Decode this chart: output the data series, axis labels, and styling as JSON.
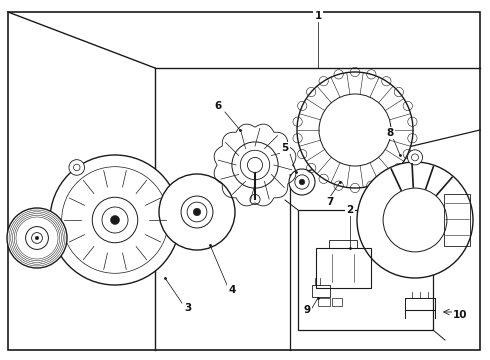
{
  "bg_color": "#ffffff",
  "line_color": "#1a1a1a",
  "label_color": "#111111",
  "figsize": [
    4.9,
    3.6
  ],
  "dpi": 100,
  "lw_main": 1.0,
  "lw_thin": 0.5,
  "lw_med": 0.7
}
